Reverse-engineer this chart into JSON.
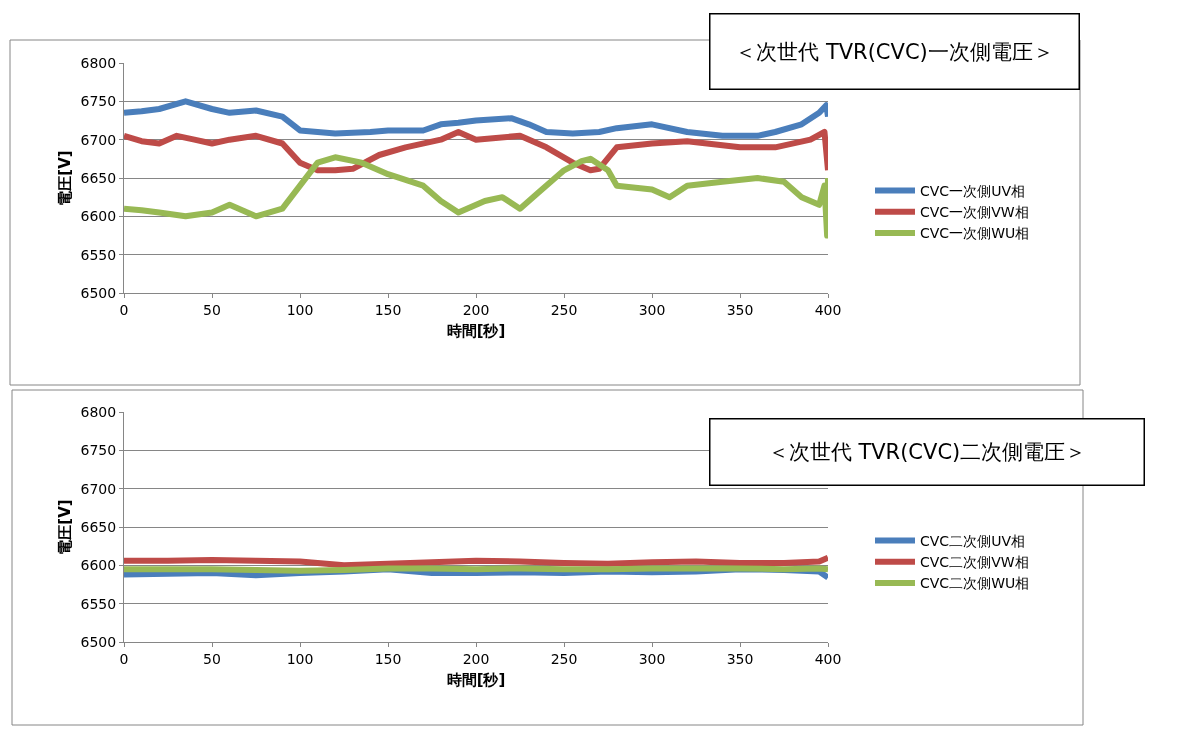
{
  "chart_data": [
    {
      "type": "line",
      "title": "＜次世代 TVR(CVC)一次側電圧＞",
      "xlabel": "時間[秒]",
      "ylabel": "電圧[V]",
      "xlim": [
        0,
        400
      ],
      "xticks": [
        0,
        50,
        100,
        150,
        200,
        250,
        300,
        350,
        400
      ],
      "ylim": [
        6500,
        6800
      ],
      "yticks": [
        6500,
        6550,
        6600,
        6650,
        6700,
        6750,
        6800
      ],
      "grid": "y",
      "legend": "right",
      "marker": "none",
      "line_style": "solid",
      "series": [
        {
          "name": "CVC一次側UV相",
          "color": "#4a7ebb",
          "x": [
            0,
            10,
            20,
            35,
            50,
            60,
            75,
            90,
            100,
            110,
            120,
            140,
            150,
            170,
            180,
            190,
            200,
            220,
            230,
            240,
            255,
            270,
            280,
            300,
            320,
            340,
            360,
            370,
            385,
            395,
            399,
            400
          ],
          "values": [
            6735,
            6737,
            6740,
            6750,
            6740,
            6735,
            6738,
            6730,
            6712,
            6710,
            6708,
            6710,
            6712,
            6712,
            6720,
            6722,
            6725,
            6728,
            6720,
            6710,
            6708,
            6710,
            6715,
            6720,
            6710,
            6705,
            6705,
            6710,
            6720,
            6735,
            6745,
            6730
          ]
        },
        {
          "name": "CVC一次側VW相",
          "color": "#be4b48",
          "x": [
            0,
            10,
            20,
            30,
            40,
            50,
            60,
            75,
            90,
            100,
            110,
            120,
            130,
            145,
            160,
            180,
            190,
            200,
            225,
            240,
            255,
            265,
            270,
            280,
            300,
            320,
            350,
            370,
            390,
            398,
            400
          ],
          "values": [
            6705,
            6698,
            6695,
            6705,
            6700,
            6695,
            6700,
            6705,
            6695,
            6670,
            6660,
            6660,
            6662,
            6680,
            6690,
            6700,
            6710,
            6700,
            6705,
            6690,
            6670,
            6660,
            6662,
            6690,
            6695,
            6698,
            6690,
            6690,
            6700,
            6710,
            6660
          ]
        },
        {
          "name": "CVC一次側WU相",
          "color": "#98b954",
          "x": [
            0,
            10,
            20,
            35,
            50,
            60,
            75,
            90,
            100,
            110,
            120,
            135,
            150,
            170,
            180,
            190,
            205,
            215,
            225,
            235,
            250,
            260,
            265,
            275,
            280,
            300,
            310,
            320,
            340,
            360,
            375,
            385,
            395,
            398,
            399.5,
            400
          ],
          "values": [
            6610,
            6608,
            6605,
            6600,
            6605,
            6615,
            6600,
            6610,
            6640,
            6670,
            6677,
            6670,
            6655,
            6640,
            6620,
            6605,
            6620,
            6625,
            6610,
            6630,
            6660,
            6672,
            6675,
            6660,
            6640,
            6635,
            6625,
            6640,
            6645,
            6650,
            6645,
            6625,
            6615,
            6640,
            6575,
            6650
          ]
        }
      ]
    },
    {
      "type": "line",
      "title": "＜次世代 TVR(CVC)二次側電圧＞",
      "xlabel": "時間[秒]",
      "ylabel": "電圧[V]",
      "xlim": [
        0,
        400
      ],
      "xticks": [
        0,
        50,
        100,
        150,
        200,
        250,
        300,
        350,
        400
      ],
      "ylim": [
        6500,
        6800
      ],
      "yticks": [
        6500,
        6550,
        6600,
        6650,
        6700,
        6750,
        6800
      ],
      "grid": "y",
      "legend": "right",
      "marker": "none",
      "line_style": "solid",
      "series": [
        {
          "name": "CVC二次側UV相",
          "color": "#4a7ebb",
          "x": [
            0,
            25,
            50,
            75,
            100,
            125,
            150,
            175,
            200,
            225,
            250,
            275,
            300,
            325,
            350,
            375,
            395,
            400
          ],
          "values": [
            6588,
            6589,
            6590,
            6587,
            6590,
            6592,
            6595,
            6590,
            6590,
            6591,
            6590,
            6592,
            6591,
            6592,
            6595,
            6594,
            6592,
            6584
          ]
        },
        {
          "name": "CVC二次側VW相",
          "color": "#be4b48",
          "x": [
            0,
            25,
            50,
            75,
            100,
            125,
            150,
            175,
            200,
            225,
            250,
            275,
            300,
            325,
            350,
            375,
            395,
            400
          ],
          "values": [
            6606,
            6606,
            6607,
            6606,
            6605,
            6600,
            6602,
            6604,
            6606,
            6605,
            6603,
            6602,
            6604,
            6605,
            6603,
            6603,
            6605,
            6610
          ]
        },
        {
          "name": "CVC二次側WU相",
          "color": "#98b954",
          "x": [
            0,
            25,
            50,
            75,
            100,
            125,
            150,
            175,
            200,
            225,
            250,
            275,
            300,
            325,
            350,
            375,
            395,
            400
          ],
          "values": [
            6595,
            6595,
            6595,
            6594,
            6593,
            6594,
            6596,
            6596,
            6595,
            6596,
            6595,
            6595,
            6596,
            6596,
            6596,
            6595,
            6596,
            6595
          ]
        }
      ]
    }
  ]
}
